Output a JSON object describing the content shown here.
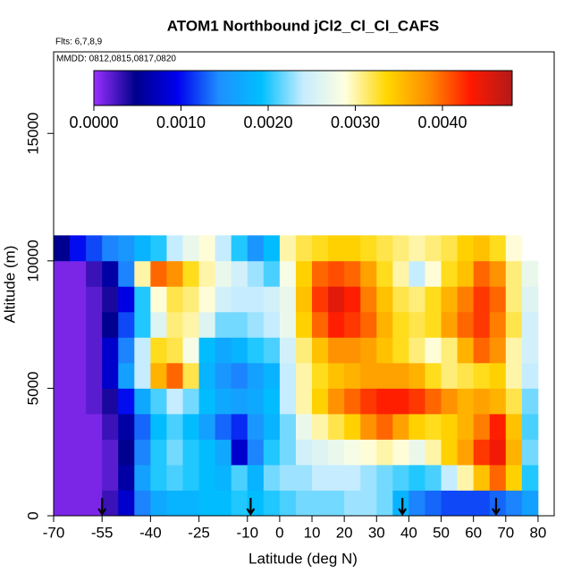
{
  "chart_data": {
    "type": "heatmap",
    "title": "ATOM1 Northbound jCl2_Cl_Cl_CAFS",
    "annotations": [
      "Flts: 6,7,8,9",
      "MMDD: 0812,0815,0817,0820"
    ],
    "x_label": "Latitude (deg N)",
    "y_label": "Altitude (m)",
    "xlim": [
      -70,
      85
    ],
    "ylim": [
      0,
      18200
    ],
    "xticks": [
      -70,
      -55,
      -40,
      -25,
      -10,
      0,
      10,
      20,
      30,
      40,
      50,
      60,
      70,
      80
    ],
    "yticks": [
      0,
      5000,
      10000,
      15000
    ],
    "x_edges": [
      -70,
      -65,
      -60,
      -55,
      -50,
      -45,
      -40,
      -35,
      -30,
      -25,
      -20,
      -15,
      -10,
      -5,
      0,
      5,
      10,
      15,
      20,
      25,
      30,
      35,
      40,
      45,
      50,
      55,
      60,
      65,
      70,
      75,
      80
    ],
    "y_edges": [
      0,
      1000,
      2000,
      3000,
      4000,
      5000,
      6000,
      7000,
      8000,
      9000,
      10000,
      11000
    ],
    "z": [
      [
        0.0001,
        0.0001,
        0.0001,
        0.0003,
        0.0008,
        0.0014,
        0.0017,
        0.0018,
        0.0018,
        0.0019,
        0.0019,
        0.002,
        0.0019,
        0.002,
        0.0021,
        0.0022,
        0.0022,
        0.0022,
        0.0023,
        0.0023,
        0.0022,
        0.0018,
        0.0014,
        0.0013,
        0.0012,
        0.0012,
        0.0012,
        0.0013,
        0.0014,
        0.0016
      ],
      [
        0.0001,
        0.0001,
        0.0001,
        0.0002,
        0.0006,
        0.0016,
        0.002,
        0.0021,
        0.002,
        0.0019,
        0.0018,
        0.0021,
        0.0018,
        0.0022,
        0.0023,
        0.0023,
        0.0024,
        0.0024,
        0.0024,
        0.0023,
        0.0022,
        0.0021,
        0.002,
        0.0021,
        0.0024,
        0.003,
        0.0035,
        0.004,
        0.0034,
        0.002
      ],
      [
        0.0001,
        0.0001,
        0.0001,
        0.0002,
        0.0005,
        0.0014,
        0.002,
        0.0022,
        0.002,
        0.0019,
        0.0017,
        0.0008,
        0.0014,
        0.002,
        0.0022,
        0.0025,
        0.0026,
        0.0027,
        0.0028,
        0.0029,
        0.003,
        0.0029,
        0.0027,
        0.003,
        0.0034,
        0.0037,
        0.0042,
        0.0044,
        0.0036,
        0.0022
      ],
      [
        0.0001,
        0.0001,
        0.0001,
        0.0003,
        0.0006,
        0.0013,
        0.0019,
        0.0021,
        0.0019,
        0.0016,
        0.0013,
        0.0011,
        0.0015,
        0.0018,
        0.0022,
        0.0027,
        0.003,
        0.0032,
        0.0034,
        0.0038,
        0.004,
        0.0037,
        0.0034,
        0.0033,
        0.0034,
        0.0036,
        0.0039,
        0.0043,
        0.0035,
        0.0021
      ],
      [
        0.0001,
        0.0001,
        0.0002,
        0.0004,
        0.001,
        0.0017,
        0.0021,
        0.0024,
        0.0022,
        0.0019,
        0.0017,
        0.0016,
        0.0017,
        0.0019,
        0.0024,
        0.003,
        0.0034,
        0.0038,
        0.004,
        0.0042,
        0.0043,
        0.0043,
        0.0042,
        0.004,
        0.0038,
        0.0036,
        0.0037,
        0.0036,
        0.0032,
        0.0022
      ],
      [
        0.0001,
        0.0001,
        0.0002,
        0.0008,
        0.0016,
        0.0024,
        0.0036,
        0.004,
        0.0032,
        0.0018,
        0.0015,
        0.0014,
        0.0016,
        0.0018,
        0.0024,
        0.003,
        0.0033,
        0.0035,
        0.0036,
        0.0037,
        0.0037,
        0.0037,
        0.0036,
        0.0033,
        0.0031,
        0.0032,
        0.0033,
        0.0034,
        0.003,
        0.0024
      ],
      [
        0.0001,
        0.0001,
        0.0002,
        0.0008,
        0.0014,
        0.0024,
        0.0033,
        0.0032,
        0.0028,
        0.0019,
        0.0017,
        0.0018,
        0.002,
        0.0021,
        0.0025,
        0.0031,
        0.0035,
        0.0038,
        0.0038,
        0.0037,
        0.0035,
        0.0033,
        0.0031,
        0.0029,
        0.0031,
        0.0036,
        0.004,
        0.0038,
        0.003,
        0.0025
      ],
      [
        0.0001,
        0.0001,
        0.0002,
        0.0005,
        0.0012,
        0.002,
        0.0026,
        0.0031,
        0.003,
        0.0026,
        0.0022,
        0.0022,
        0.0023,
        0.0024,
        0.0027,
        0.0034,
        0.004,
        0.0043,
        0.0042,
        0.004,
        0.0036,
        0.0033,
        0.0032,
        0.0033,
        0.0037,
        0.004,
        0.0042,
        0.0039,
        0.0032,
        0.0025
      ],
      [
        0.0001,
        0.0001,
        0.0002,
        0.0004,
        0.0009,
        0.002,
        0.0029,
        0.0032,
        0.0031,
        0.0029,
        0.0025,
        0.0024,
        0.0024,
        0.0025,
        0.0027,
        0.0035,
        0.0042,
        0.0045,
        0.0043,
        0.0039,
        0.0035,
        0.0032,
        0.0031,
        0.0033,
        0.0036,
        0.0039,
        0.0042,
        0.004,
        0.0031,
        0.0026
      ],
      [
        0.0001,
        0.0001,
        0.0003,
        0.0006,
        0.0014,
        0.003,
        0.004,
        0.0038,
        0.0033,
        0.003,
        0.0027,
        0.0025,
        0.0023,
        0.0021,
        0.0028,
        0.0034,
        0.004,
        0.0041,
        0.004,
        0.0037,
        0.0033,
        0.003,
        0.0024,
        0.0029,
        0.0033,
        0.0035,
        0.004,
        0.0038,
        0.0031,
        0.0027
      ],
      [
        0.0005,
        0.001,
        0.0012,
        0.0014,
        0.0015,
        0.0018,
        0.002,
        0.0024,
        0.0027,
        0.0029,
        0.0024,
        0.002,
        0.0015,
        0.0019,
        0.003,
        0.0032,
        0.0033,
        0.0034,
        0.0034,
        0.0033,
        0.0032,
        0.0031,
        0.003,
        0.0031,
        0.0032,
        0.0034,
        0.0035,
        0.0033,
        0.0029,
        null
      ]
    ],
    "zlim": [
      0,
      0.0048
    ],
    "zticks": [
      {
        "value": 0,
        "label": "0.0000"
      },
      {
        "value": 0.001,
        "label": "0.0010"
      },
      {
        "value": 0.002,
        "label": "0.0020"
      },
      {
        "value": 0.003,
        "label": "0.0030"
      },
      {
        "value": 0.004,
        "label": "0.0040"
      }
    ],
    "colorscale": [
      "#9b30ff",
      "#00008b",
      "#0000ee",
      "#1e90ff",
      "#00bfff",
      "#c6ecff",
      "#ffffe0",
      "#ffd700",
      "#ff8c00",
      "#ff1a00",
      "#b21a1a"
    ],
    "arrows": [
      -55,
      -9,
      38,
      67
    ]
  }
}
